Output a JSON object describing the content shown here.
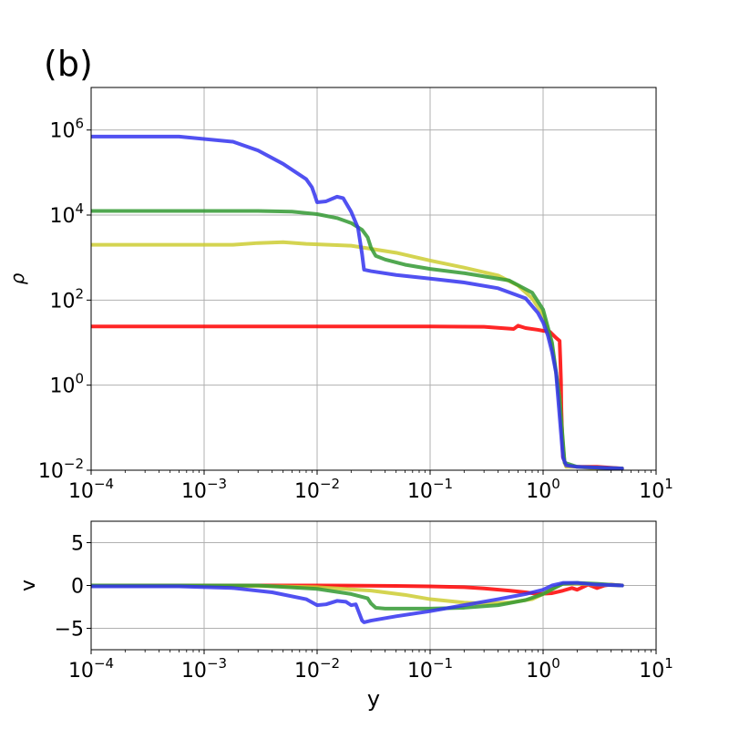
{
  "panel_label": "(b)",
  "chart_data": [
    {
      "type": "line",
      "title": "",
      "xlabel": "",
      "ylabel": "ρ",
      "xscale": "log",
      "yscale": "log",
      "xlim": [
        0.0001,
        10
      ],
      "ylim": [
        0.01,
        10000000
      ],
      "grid": true,
      "xticks": [
        {
          "value": 0.0001,
          "base": "10",
          "exp": "−4"
        },
        {
          "value": 0.001,
          "base": "10",
          "exp": "−3"
        },
        {
          "value": 0.01,
          "base": "10",
          "exp": "−2"
        },
        {
          "value": 0.1,
          "base": "10",
          "exp": "−1"
        },
        {
          "value": 1,
          "base": "10",
          "exp": "0"
        },
        {
          "value": 10,
          "base": "10",
          "exp": "1"
        }
      ],
      "yticks": [
        {
          "value": 0.01,
          "base": "10",
          "exp": "−2"
        },
        {
          "value": 1,
          "base": "10",
          "exp": "0"
        },
        {
          "value": 100,
          "base": "10",
          "exp": "2"
        },
        {
          "value": 10000,
          "base": "10",
          "exp": "4"
        },
        {
          "value": 1000000,
          "base": "10",
          "exp": "6"
        }
      ],
      "series": [
        {
          "color": "#ff0000",
          "x": [
            0.0001,
            0.001,
            0.01,
            0.1,
            0.3,
            0.55,
            0.6,
            0.7,
            0.9,
            1.0,
            1.15,
            1.2,
            1.3,
            1.4,
            1.42,
            1.44,
            1.45,
            1.48,
            1.5,
            1.55,
            1.6,
            2.0,
            3.0,
            5.0
          ],
          "y": [
            24,
            24,
            24,
            24,
            23.5,
            21,
            25,
            22,
            20,
            19,
            18,
            16,
            13,
            11,
            4,
            1.2,
            0.3,
            0.05,
            0.02,
            0.016,
            0.013,
            0.012,
            0.012,
            0.011
          ]
        },
        {
          "color": "#cccc33",
          "x": [
            0.0001,
            0.0018,
            0.003,
            0.005,
            0.008,
            0.02,
            0.05,
            0.1,
            0.2,
            0.4,
            0.6,
            0.8,
            1.0,
            1.1,
            1.2,
            1.3,
            1.4,
            1.5,
            1.55,
            1.6,
            2.0,
            3.0,
            5.0
          ],
          "y": [
            2000,
            2000,
            2200,
            2300,
            2100,
            1900,
            1300,
            850,
            580,
            380,
            220,
            110,
            45,
            20,
            8,
            2,
            0.5,
            0.04,
            0.015,
            0.012,
            0.012,
            0.011,
            0.011
          ]
        },
        {
          "color": "#339933",
          "x": [
            0.0001,
            0.003,
            0.006,
            0.01,
            0.015,
            0.02,
            0.025,
            0.028,
            0.03,
            0.033,
            0.04,
            0.06,
            0.1,
            0.2,
            0.5,
            0.8,
            1.0,
            1.2,
            1.4,
            1.55,
            2.0,
            5.0
          ],
          "y": [
            12500,
            12500,
            12000,
            10500,
            8500,
            6500,
            4500,
            3000,
            1700,
            1100,
            900,
            680,
            540,
            430,
            290,
            150,
            60,
            10,
            0.5,
            0.015,
            0.012,
            0.011
          ]
        },
        {
          "color": "#3333ee",
          "x": [
            0.0001,
            0.0006,
            0.0018,
            0.003,
            0.005,
            0.008,
            0.009,
            0.0095,
            0.01,
            0.012,
            0.015,
            0.017,
            0.02,
            0.023,
            0.025,
            0.026,
            0.03,
            0.05,
            0.1,
            0.2,
            0.4,
            0.7,
            0.9,
            1.0,
            1.1,
            1.2,
            1.3,
            1.5,
            1.6,
            2.0,
            5.0
          ],
          "y": [
            700000,
            700000,
            530000,
            330000,
            160000,
            70000,
            45000,
            30000,
            20000,
            21000,
            27000,
            25000,
            12000,
            5000,
            1200,
            520,
            480,
            390,
            320,
            260,
            190,
            110,
            50,
            30,
            15,
            6,
            2,
            0.02,
            0.013,
            0.012,
            0.011
          ]
        }
      ]
    },
    {
      "type": "line",
      "title": "",
      "xlabel": "y",
      "ylabel": "v",
      "xscale": "log",
      "yscale": "linear",
      "xlim": [
        0.0001,
        10
      ],
      "ylim": [
        -7.5,
        7.5
      ],
      "grid": true,
      "xticks": [
        {
          "value": 0.0001,
          "base": "10",
          "exp": "−4"
        },
        {
          "value": 0.001,
          "base": "10",
          "exp": "−3"
        },
        {
          "value": 0.01,
          "base": "10",
          "exp": "−2"
        },
        {
          "value": 0.1,
          "base": "10",
          "exp": "−1"
        },
        {
          "value": 1,
          "base": "10",
          "exp": "0"
        },
        {
          "value": 10,
          "base": "10",
          "exp": "1"
        }
      ],
      "yticks": [
        {
          "value": 5,
          "label": "5"
        },
        {
          "value": 0,
          "label": "0"
        },
        {
          "value": -5,
          "label": "−5"
        }
      ],
      "series": [
        {
          "color": "#ff0000",
          "x": [
            0.0001,
            0.01,
            0.05,
            0.1,
            0.2,
            0.3,
            0.5,
            0.7,
            0.9,
            1.2,
            1.5,
            1.8,
            2.0,
            2.5,
            3.0,
            3.5,
            4.0,
            5.0
          ],
          "y": [
            0,
            0,
            -0.05,
            -0.1,
            -0.2,
            -0.35,
            -0.6,
            -0.8,
            -1.0,
            -0.9,
            -0.6,
            -0.3,
            -0.5,
            0.1,
            -0.3,
            0.0,
            0.1,
            0
          ]
        },
        {
          "color": "#cccc33",
          "x": [
            0.0001,
            0.003,
            0.01,
            0.03,
            0.06,
            0.1,
            0.2,
            0.3,
            0.5,
            0.8,
            1.0,
            1.3,
            1.5,
            2.0,
            3.0,
            5.0
          ],
          "y": [
            0,
            -0.05,
            -0.2,
            -0.6,
            -1.1,
            -1.6,
            -2.0,
            -2.1,
            -2.0,
            -1.6,
            -1.0,
            -0.2,
            0.2,
            0.2,
            0.1,
            0
          ]
        },
        {
          "color": "#339933",
          "x": [
            0.0001,
            0.003,
            0.01,
            0.02,
            0.028,
            0.03,
            0.033,
            0.04,
            0.1,
            0.2,
            0.4,
            0.7,
            1.0,
            1.3,
            1.5,
            2.0,
            3.0,
            5.0
          ],
          "y": [
            0,
            0,
            -0.4,
            -1.0,
            -1.5,
            -2.1,
            -2.6,
            -2.7,
            -2.7,
            -2.6,
            -2.3,
            -1.7,
            -1.0,
            -0.2,
            0.2,
            0.3,
            0.2,
            0
          ]
        },
        {
          "color": "#3333ee",
          "x": [
            0.0001,
            0.0006,
            0.0018,
            0.004,
            0.008,
            0.01,
            0.012,
            0.015,
            0.018,
            0.02,
            0.022,
            0.025,
            0.026,
            0.03,
            0.05,
            0.1,
            0.2,
            0.4,
            0.7,
            1.0,
            1.2,
            1.4,
            1.5,
            2.0,
            3.0,
            5.0
          ],
          "y": [
            -0.1,
            -0.1,
            -0.3,
            -0.8,
            -1.6,
            -2.3,
            -2.2,
            -1.8,
            -1.9,
            -2.3,
            -2.2,
            -4.1,
            -4.3,
            -4.1,
            -3.6,
            -3.0,
            -2.3,
            -1.6,
            -1.0,
            -0.5,
            0.0,
            0.2,
            0.3,
            0.3,
            0.1,
            0
          ]
        }
      ]
    }
  ]
}
